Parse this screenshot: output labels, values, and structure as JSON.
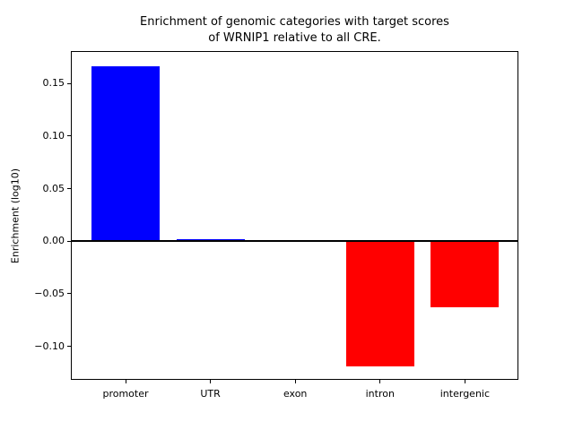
{
  "figure": {
    "title_line1": "Enrichment of genomic categories with target scores",
    "title_line2": "of WRNIP1 relative to all CRE.",
    "ylabel": "Enrichment (log10)"
  },
  "chart_data": {
    "type": "bar",
    "title": "Enrichment of genomic categories with target scores of WRNIP1 relative to all CRE.",
    "xlabel": "",
    "ylabel": "Enrichment (log10)",
    "categories": [
      "promoter",
      "UTR",
      "exon",
      "intron",
      "intergenic"
    ],
    "values": [
      0.166,
      0.002,
      0.001,
      -0.119,
      -0.063
    ],
    "ylim": [
      -0.131,
      0.18
    ],
    "yticks": [
      0.15,
      0.1,
      0.05,
      0.0,
      -0.05,
      -0.1
    ],
    "ytick_labels": [
      "0.15",
      "0.10",
      "0.05",
      "0.00",
      "−0.05",
      "−0.10"
    ],
    "grid": false,
    "legend": null,
    "background_color": "#ffffff",
    "positive_color": "#0000ff",
    "negative_color": "#ff0000",
    "zero_line_color": "#000000",
    "axis_color": "#000000"
  }
}
